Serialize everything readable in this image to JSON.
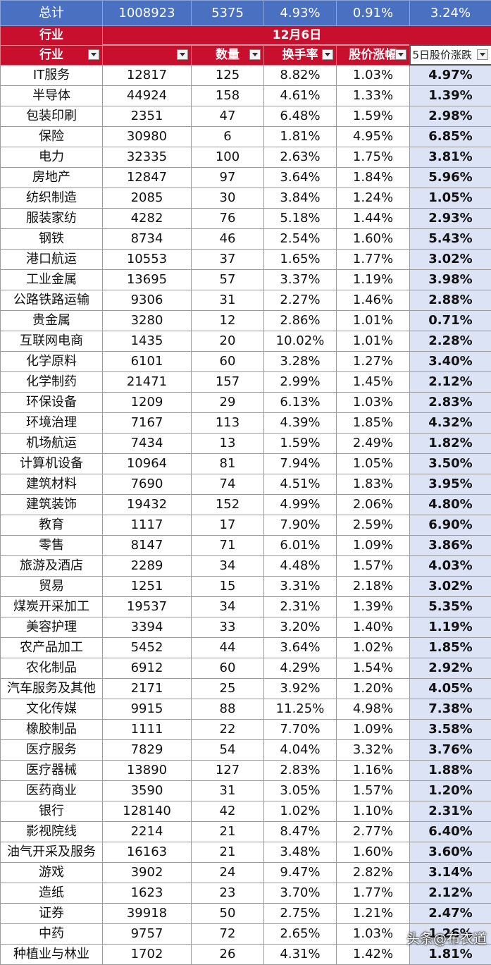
{
  "total": {
    "label": "总计",
    "values": [
      "1008923",
      "5375",
      "4.93%",
      "0.91%",
      "3.24%"
    ]
  },
  "date_row": {
    "label": "行业",
    "date": "12月6日"
  },
  "headers": [
    "行业",
    "",
    "数量",
    "换手率",
    "股价涨幅",
    "5日股价涨跌"
  ],
  "rows": [
    [
      "IT服务",
      "12817",
      "125",
      "8.82%",
      "1.03%",
      "4.97%"
    ],
    [
      "半导体",
      "44924",
      "158",
      "4.61%",
      "1.33%",
      "1.39%"
    ],
    [
      "包装印刷",
      "2351",
      "47",
      "6.48%",
      "1.59%",
      "2.98%"
    ],
    [
      "保险",
      "30980",
      "6",
      "1.81%",
      "4.95%",
      "6.85%"
    ],
    [
      "电力",
      "32335",
      "100",
      "2.63%",
      "1.75%",
      "3.81%"
    ],
    [
      "房地产",
      "12847",
      "97",
      "3.64%",
      "1.84%",
      "5.96%"
    ],
    [
      "纺织制造",
      "2085",
      "30",
      "3.84%",
      "1.24%",
      "1.05%"
    ],
    [
      "服装家纺",
      "4282",
      "76",
      "5.18%",
      "1.44%",
      "2.93%"
    ],
    [
      "钢铁",
      "8734",
      "46",
      "2.54%",
      "1.60%",
      "5.43%"
    ],
    [
      "港口航运",
      "10553",
      "37",
      "1.65%",
      "1.77%",
      "3.02%"
    ],
    [
      "工业金属",
      "13695",
      "57",
      "3.37%",
      "1.19%",
      "3.98%"
    ],
    [
      "公路铁路运输",
      "9306",
      "31",
      "2.27%",
      "1.46%",
      "2.88%"
    ],
    [
      "贵金属",
      "3280",
      "12",
      "2.86%",
      "1.01%",
      "0.71%"
    ],
    [
      "互联网电商",
      "1435",
      "20",
      "10.02%",
      "1.01%",
      "2.28%"
    ],
    [
      "化学原料",
      "6101",
      "60",
      "3.28%",
      "1.27%",
      "3.40%"
    ],
    [
      "化学制药",
      "21471",
      "157",
      "2.99%",
      "1.45%",
      "2.12%"
    ],
    [
      "环保设备",
      "1209",
      "29",
      "6.13%",
      "1.03%",
      "2.83%"
    ],
    [
      "环境治理",
      "7167",
      "113",
      "4.39%",
      "1.85%",
      "4.32%"
    ],
    [
      "机场航运",
      "7434",
      "13",
      "1.59%",
      "2.49%",
      "1.82%"
    ],
    [
      "计算机设备",
      "10964",
      "81",
      "7.94%",
      "1.05%",
      "3.50%"
    ],
    [
      "建筑材料",
      "7690",
      "74",
      "4.51%",
      "1.83%",
      "3.95%"
    ],
    [
      "建筑装饰",
      "19432",
      "152",
      "4.99%",
      "2.06%",
      "4.80%"
    ],
    [
      "教育",
      "1117",
      "17",
      "7.90%",
      "2.59%",
      "6.90%"
    ],
    [
      "零售",
      "8147",
      "71",
      "6.01%",
      "1.09%",
      "3.86%"
    ],
    [
      "旅游及酒店",
      "2289",
      "34",
      "4.48%",
      "1.57%",
      "4.03%"
    ],
    [
      "贸易",
      "1251",
      "15",
      "3.31%",
      "2.18%",
      "3.02%"
    ],
    [
      "煤炭开采加工",
      "19537",
      "34",
      "2.31%",
      "1.39%",
      "5.35%"
    ],
    [
      "美容护理",
      "3394",
      "33",
      "3.20%",
      "1.40%",
      "1.19%"
    ],
    [
      "农产品加工",
      "5452",
      "44",
      "3.64%",
      "1.02%",
      "1.85%"
    ],
    [
      "农化制品",
      "6912",
      "60",
      "4.29%",
      "1.54%",
      "2.92%"
    ],
    [
      "汽车服务及其他",
      "2171",
      "25",
      "3.92%",
      "1.20%",
      "4.05%"
    ],
    [
      "文化传媒",
      "9915",
      "88",
      "11.25%",
      "4.98%",
      "7.38%"
    ],
    [
      "橡胶制品",
      "1111",
      "22",
      "7.70%",
      "1.09%",
      "3.58%"
    ],
    [
      "医疗服务",
      "7829",
      "54",
      "4.04%",
      "3.32%",
      "3.76%"
    ],
    [
      "医疗器械",
      "13890",
      "127",
      "2.83%",
      "1.16%",
      "1.88%"
    ],
    [
      "医药商业",
      "3590",
      "31",
      "3.05%",
      "1.57%",
      "1.20%"
    ],
    [
      "银行",
      "128140",
      "42",
      "1.02%",
      "1.10%",
      "2.31%"
    ],
    [
      "影视院线",
      "2214",
      "21",
      "8.47%",
      "2.77%",
      "6.40%"
    ],
    [
      "油气开采及服务",
      "16163",
      "21",
      "3.48%",
      "1.60%",
      "3.60%"
    ],
    [
      "游戏",
      "3902",
      "24",
      "9.47%",
      "2.82%",
      "3.14%"
    ],
    [
      "造纸",
      "1623",
      "23",
      "3.70%",
      "1.77%",
      "2.12%"
    ],
    [
      "证券",
      "39918",
      "50",
      "2.75%",
      "1.21%",
      "2.47%"
    ],
    [
      "中药",
      "9757",
      "72",
      "2.65%",
      "1.03%",
      "1.26%"
    ],
    [
      "种植业与林业",
      "1702",
      "26",
      "4.31%",
      "1.42%",
      "1.81%"
    ]
  ],
  "watermark": "头条@布衣道"
}
